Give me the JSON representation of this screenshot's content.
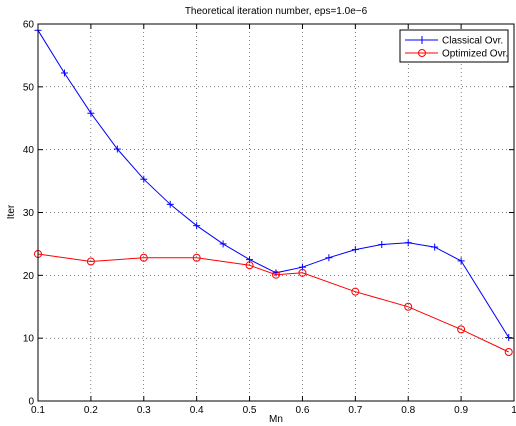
{
  "chart_data": {
    "type": "line",
    "title": "Theoretical iteration number, eps=1.0e−6",
    "xlabel": "Mn",
    "ylabel": "Iter",
    "xlim": [
      0.1,
      1
    ],
    "ylim": [
      0,
      60
    ],
    "xticks": [
      "0.1",
      "0.2",
      "0.3",
      "0.4",
      "0.5",
      "0.6",
      "0.7",
      "0.8",
      "0.9",
      "1"
    ],
    "yticks": [
      "0",
      "10",
      "20",
      "30",
      "40",
      "50",
      "60"
    ],
    "grid": true,
    "legend_position": "top-right",
    "series": [
      {
        "name": "Classical Ovr.",
        "color": "#0000ff",
        "marker": "plus",
        "x": [
          0.1,
          0.15,
          0.2,
          0.25,
          0.3,
          0.35,
          0.4,
          0.45,
          0.5,
          0.55,
          0.6,
          0.65,
          0.7,
          0.75,
          0.8,
          0.85,
          0.9,
          0.99
        ],
        "y": [
          59,
          52.2,
          45.8,
          40.1,
          35.3,
          31.3,
          27.9,
          25.0,
          22.5,
          20.4,
          21.3,
          22.8,
          24.1,
          24.9,
          25.2,
          24.5,
          22.3,
          10.1
        ]
      },
      {
        "name": "Optimized Ovr.",
        "color": "#ff0000",
        "marker": "circle",
        "x": [
          0.1,
          0.2,
          0.3,
          0.4,
          0.5,
          0.55,
          0.6,
          0.7,
          0.8,
          0.9,
          0.99
        ],
        "y": [
          23.4,
          22.2,
          22.8,
          22.8,
          21.6,
          20.1,
          20.4,
          17.4,
          15.0,
          11.4,
          7.8
        ]
      }
    ]
  }
}
